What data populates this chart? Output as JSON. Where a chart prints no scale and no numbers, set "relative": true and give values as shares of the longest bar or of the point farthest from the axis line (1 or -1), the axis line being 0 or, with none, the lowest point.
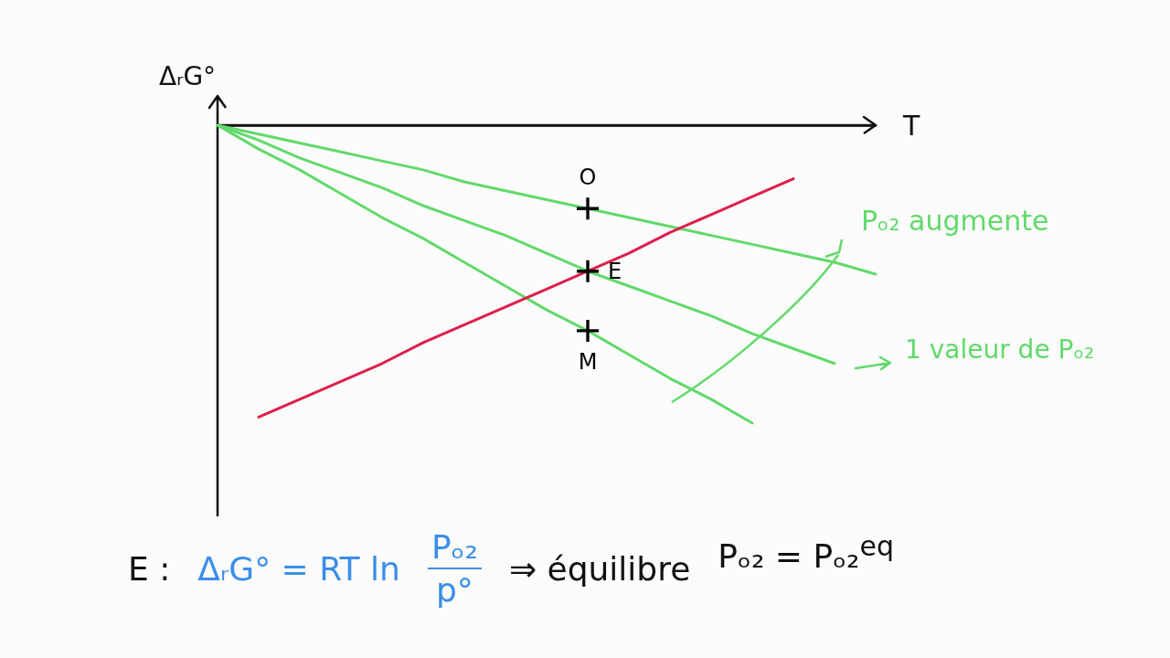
{
  "chart_data": {
    "type": "line",
    "relative": true,
    "xlabel": "T",
    "ylabel": "ΔᵣG°",
    "categories": [
      null,
      null,
      null,
      null,
      null,
      null,
      null,
      null,
      null,
      null,
      null,
      null,
      null,
      null,
      null,
      null,
      null
    ],
    "series": [
      {
        "color": "#62d96b",
        "values": [
          0,
          -0.03,
          -0.06,
          -0.09,
          -0.12,
          -0.15,
          -0.19,
          -0.22,
          -0.25,
          -0.28,
          -0.31,
          -0.34,
          -0.37,
          -0.4,
          -0.43,
          -0.46,
          -0.5
        ]
      },
      {
        "color": "#62d96b",
        "values": [
          0,
          -0.05,
          -0.11,
          -0.16,
          -0.21,
          -0.27,
          -0.32,
          -0.37,
          -0.43,
          -0.49,
          -0.54,
          -0.59,
          -0.64,
          -0.7,
          -0.75,
          -0.8,
          null
        ]
      },
      {
        "color": "#62d96b",
        "values": [
          0,
          -0.08,
          -0.15,
          -0.23,
          -0.31,
          -0.38,
          -0.46,
          -0.54,
          -0.62,
          -0.69,
          -0.77,
          -0.85,
          -0.92,
          -1,
          null,
          null,
          null
        ]
      },
      {
        "color": "#dc1f4b",
        "values": [
          null,
          -0.98,
          -0.92,
          -0.86,
          -0.8,
          -0.73,
          -0.67,
          -0.61,
          -0.55,
          -0.49,
          -0.43,
          -0.36,
          -0.3,
          -0.24,
          -0.18,
          null,
          null
        ]
      },
      {
        "name": "O",
        "color": "#000000",
        "marker": "cross",
        "values": [
          null,
          null,
          null,
          null,
          null,
          null,
          null,
          null,
          null,
          -0.28,
          null,
          null,
          null,
          null,
          null,
          null,
          null
        ]
      },
      {
        "name": "E",
        "color": "#000000",
        "marker": "cross",
        "values": [
          null,
          null,
          null,
          null,
          null,
          null,
          null,
          null,
          null,
          -0.49,
          null,
          null,
          null,
          null,
          null,
          null,
          null
        ]
      },
      {
        "name": "M",
        "color": "#000000",
        "marker": "cross",
        "values": [
          null,
          null,
          null,
          null,
          null,
          null,
          null,
          null,
          null,
          -0.69,
          null,
          null,
          null,
          null,
          null,
          null,
          null
        ]
      }
    ],
    "annotations": [
      "Pₒ₂ augmente",
      "1 valeur de Pₒ₂",
      "E :",
      "ΔᵣG° = RT ln",
      "Pₒ₂",
      "p°",
      "⇒ équilibre",
      "Pₒ₂ = Pₒ₂$^{eq}$"
    ]
  }
}
